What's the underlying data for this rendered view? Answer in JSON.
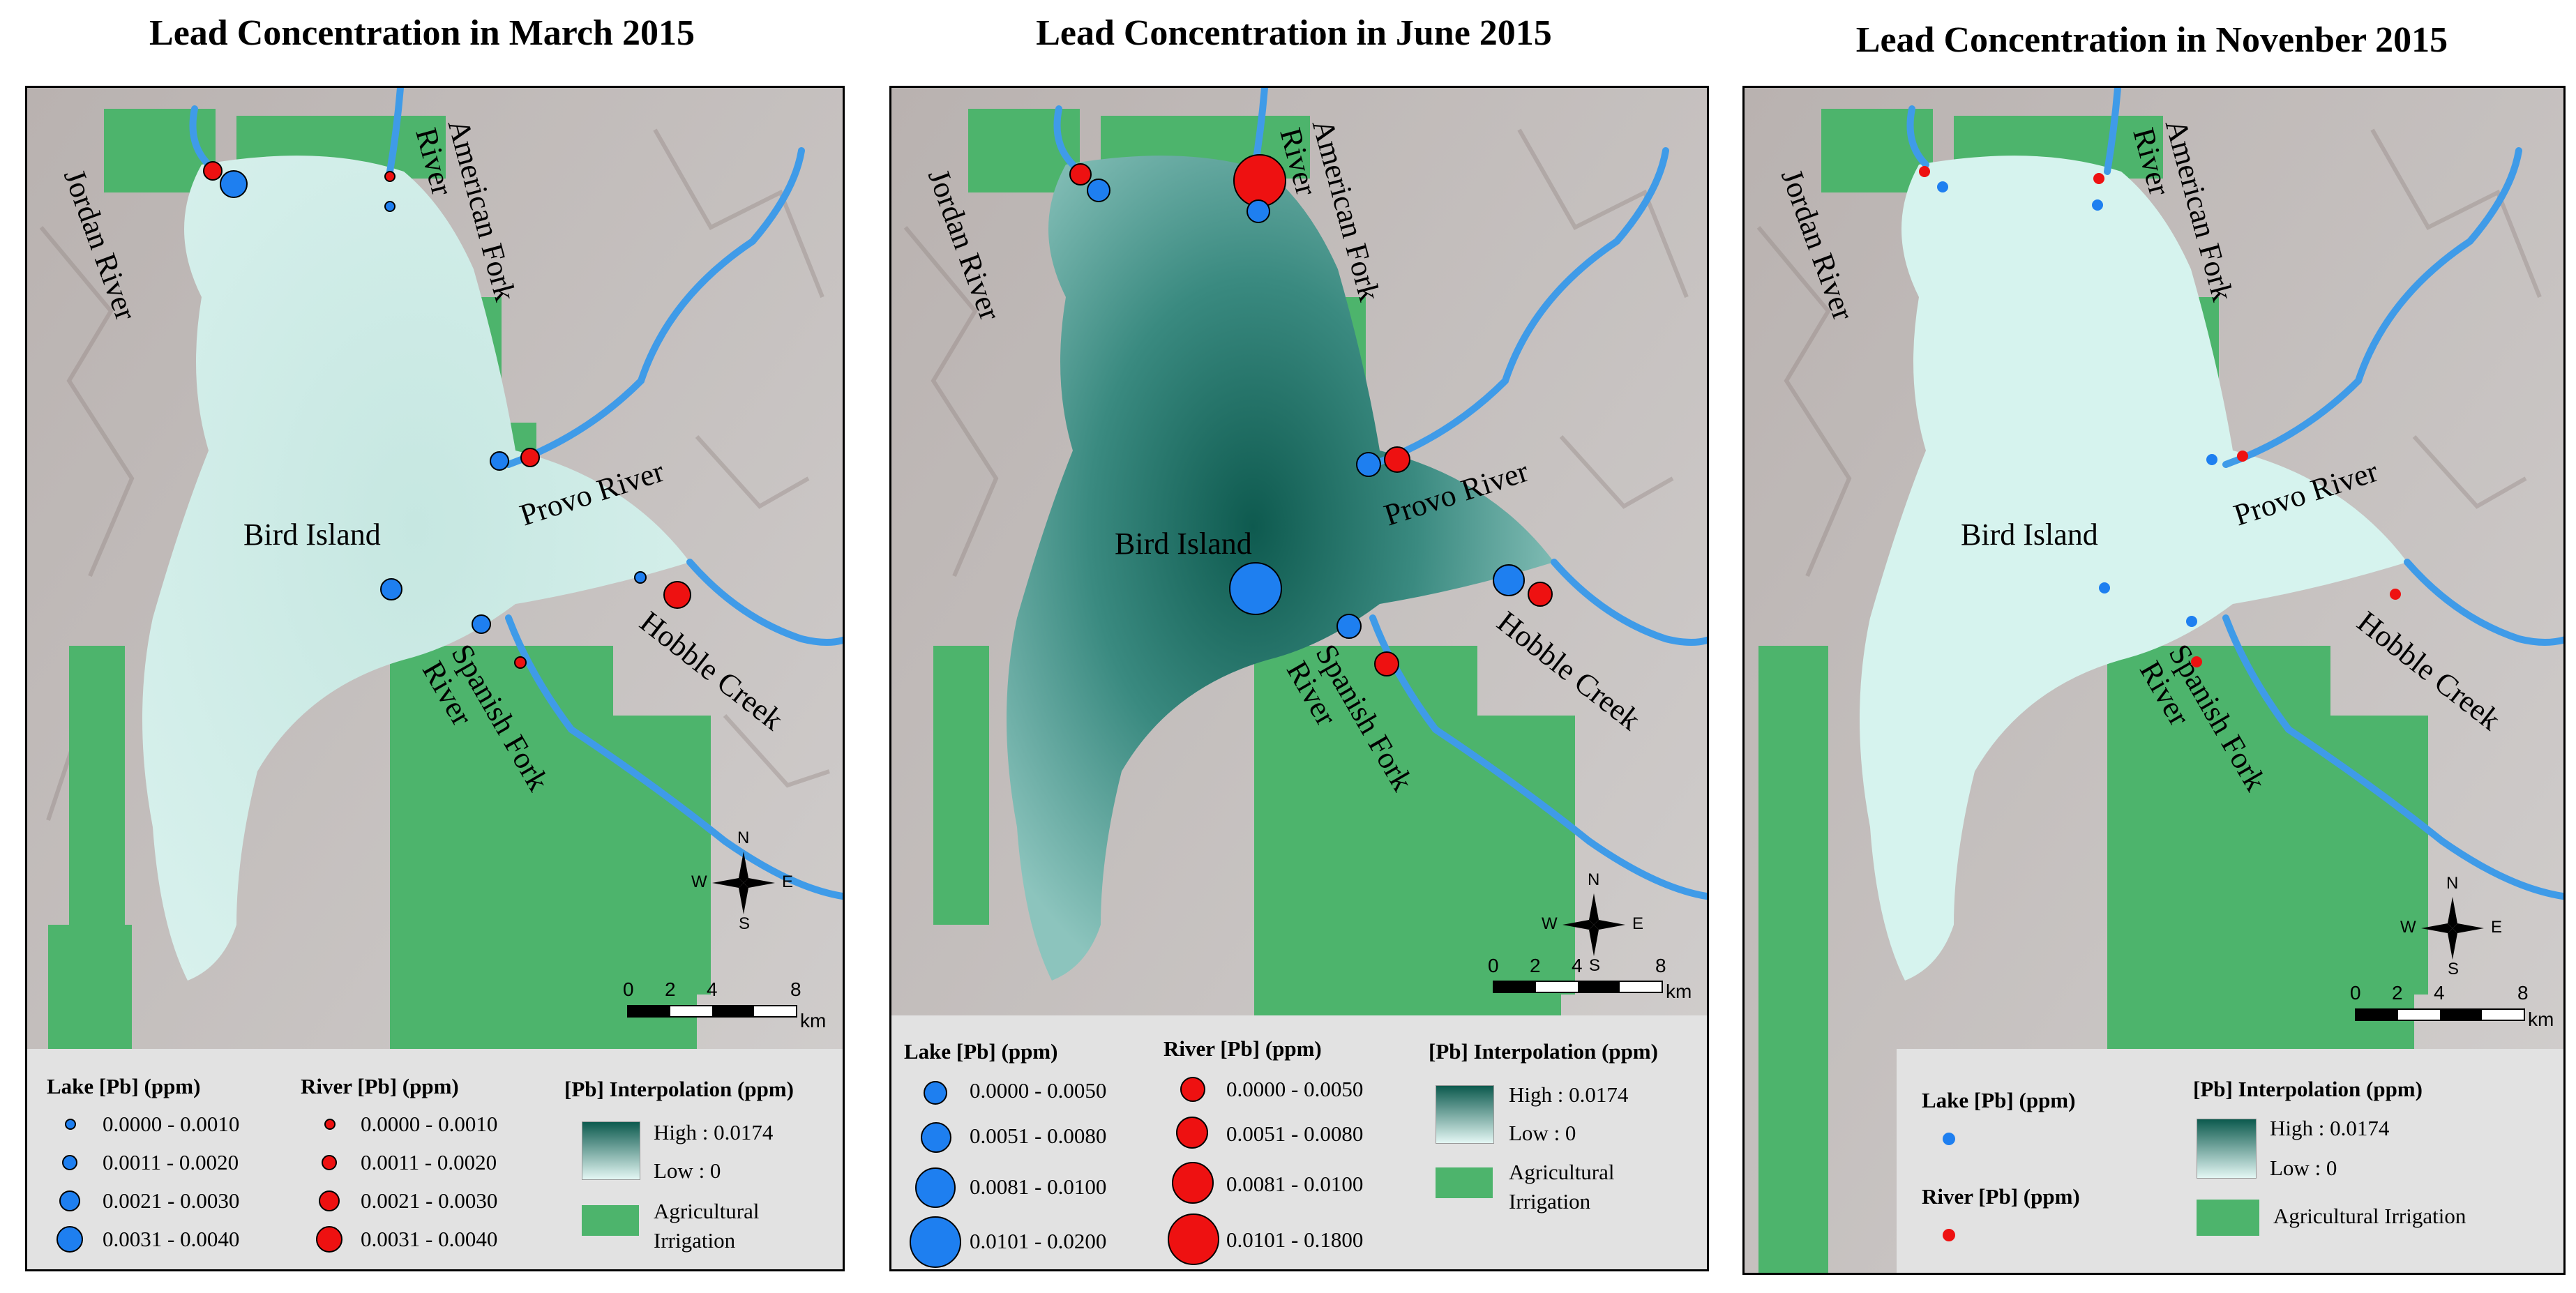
{
  "panels": [
    {
      "title": "Lead Concentration in March 2015",
      "lake_fill": "#cdebe6",
      "labels": {
        "jordan": "Jordan River",
        "american": "American Fork River",
        "provo": "Provo River",
        "bird": "Bird Island",
        "hobble": "Hobble Creek",
        "spanish": "Spanish Fork River"
      },
      "legend": {
        "lake_header": "Lake [Pb] (ppm)",
        "river_header": "River [Pb] (ppm)",
        "interp_header": "[Pb] Interpolation (ppm)",
        "lake_items": [
          "0.0000 - 0.0010",
          "0.0011 - 0.0020",
          "0.0021 - 0.0030",
          "0.0031 - 0.0040"
        ],
        "river_items": [
          "0.0000 - 0.0010",
          "0.0011 - 0.0020",
          "0.0021 - 0.0030",
          "0.0031 - 0.0040"
        ],
        "high": "High : 0.0174",
        "low": "Low : 0",
        "agri": "Agricultural Irrigation"
      },
      "scale": [
        "0",
        "2",
        "4",
        "8",
        "km"
      ]
    },
    {
      "title": "Lead Concentration in June 2015",
      "lake_fill": "#3f8f86",
      "labels": {
        "jordan": "Jordan River",
        "american": "American Fork River",
        "provo": "Provo River",
        "bird": "Bird Island",
        "hobble": "Hobble Creek",
        "spanish": "Spanish Fork River"
      },
      "legend": {
        "lake_header": "Lake [Pb] (ppm)",
        "river_header": "River [Pb] (ppm)",
        "interp_header": "[Pb] Interpolation (ppm)",
        "lake_items": [
          "0.0000 - 0.0050",
          "0.0051 - 0.0080",
          "0.0081 - 0.0100",
          "0.0101 - 0.0200"
        ],
        "river_items": [
          "0.0000 - 0.0050",
          "0.0051 - 0.0080",
          "0.0081 - 0.0100",
          "0.0101 - 0.1800"
        ],
        "high": "High : 0.0174",
        "low": "Low : 0",
        "agri": "Agricultural Irrigation"
      },
      "scale": [
        "0",
        "2",
        "4",
        "8",
        "km"
      ]
    },
    {
      "title": "Lead Concentration in Novenber 2015",
      "lake_fill": "#d6f3ee",
      "labels": {
        "jordan": "Jordan River",
        "american": "American Fork River",
        "provo": "Provo River",
        "bird": "Bird Island",
        "hobble": "Hobble Creek",
        "spanish": "Spanish Fork River"
      },
      "legend": {
        "lake_header": "Lake [Pb] (ppm)",
        "river_header": "River [Pb] (ppm)",
        "interp_header": "[Pb] Interpolation (ppm)",
        "high": "High : 0.0174",
        "low": "Low : 0",
        "agri": "Agricultural Irrigation"
      },
      "scale": [
        "0",
        "2",
        "4",
        "8",
        "km"
      ]
    }
  ],
  "compass": {
    "n": "N",
    "s": "S",
    "e": "E",
    "w": "W"
  },
  "colors": {
    "lake_point": "#1e7ff0",
    "river_point": "#ee1111",
    "agri": "#4db46c",
    "river_line": "#3f9be8",
    "terrain": "#c9c6c5",
    "gradient_high": "#0c5a4e",
    "gradient_low": "#e4f7f4"
  }
}
